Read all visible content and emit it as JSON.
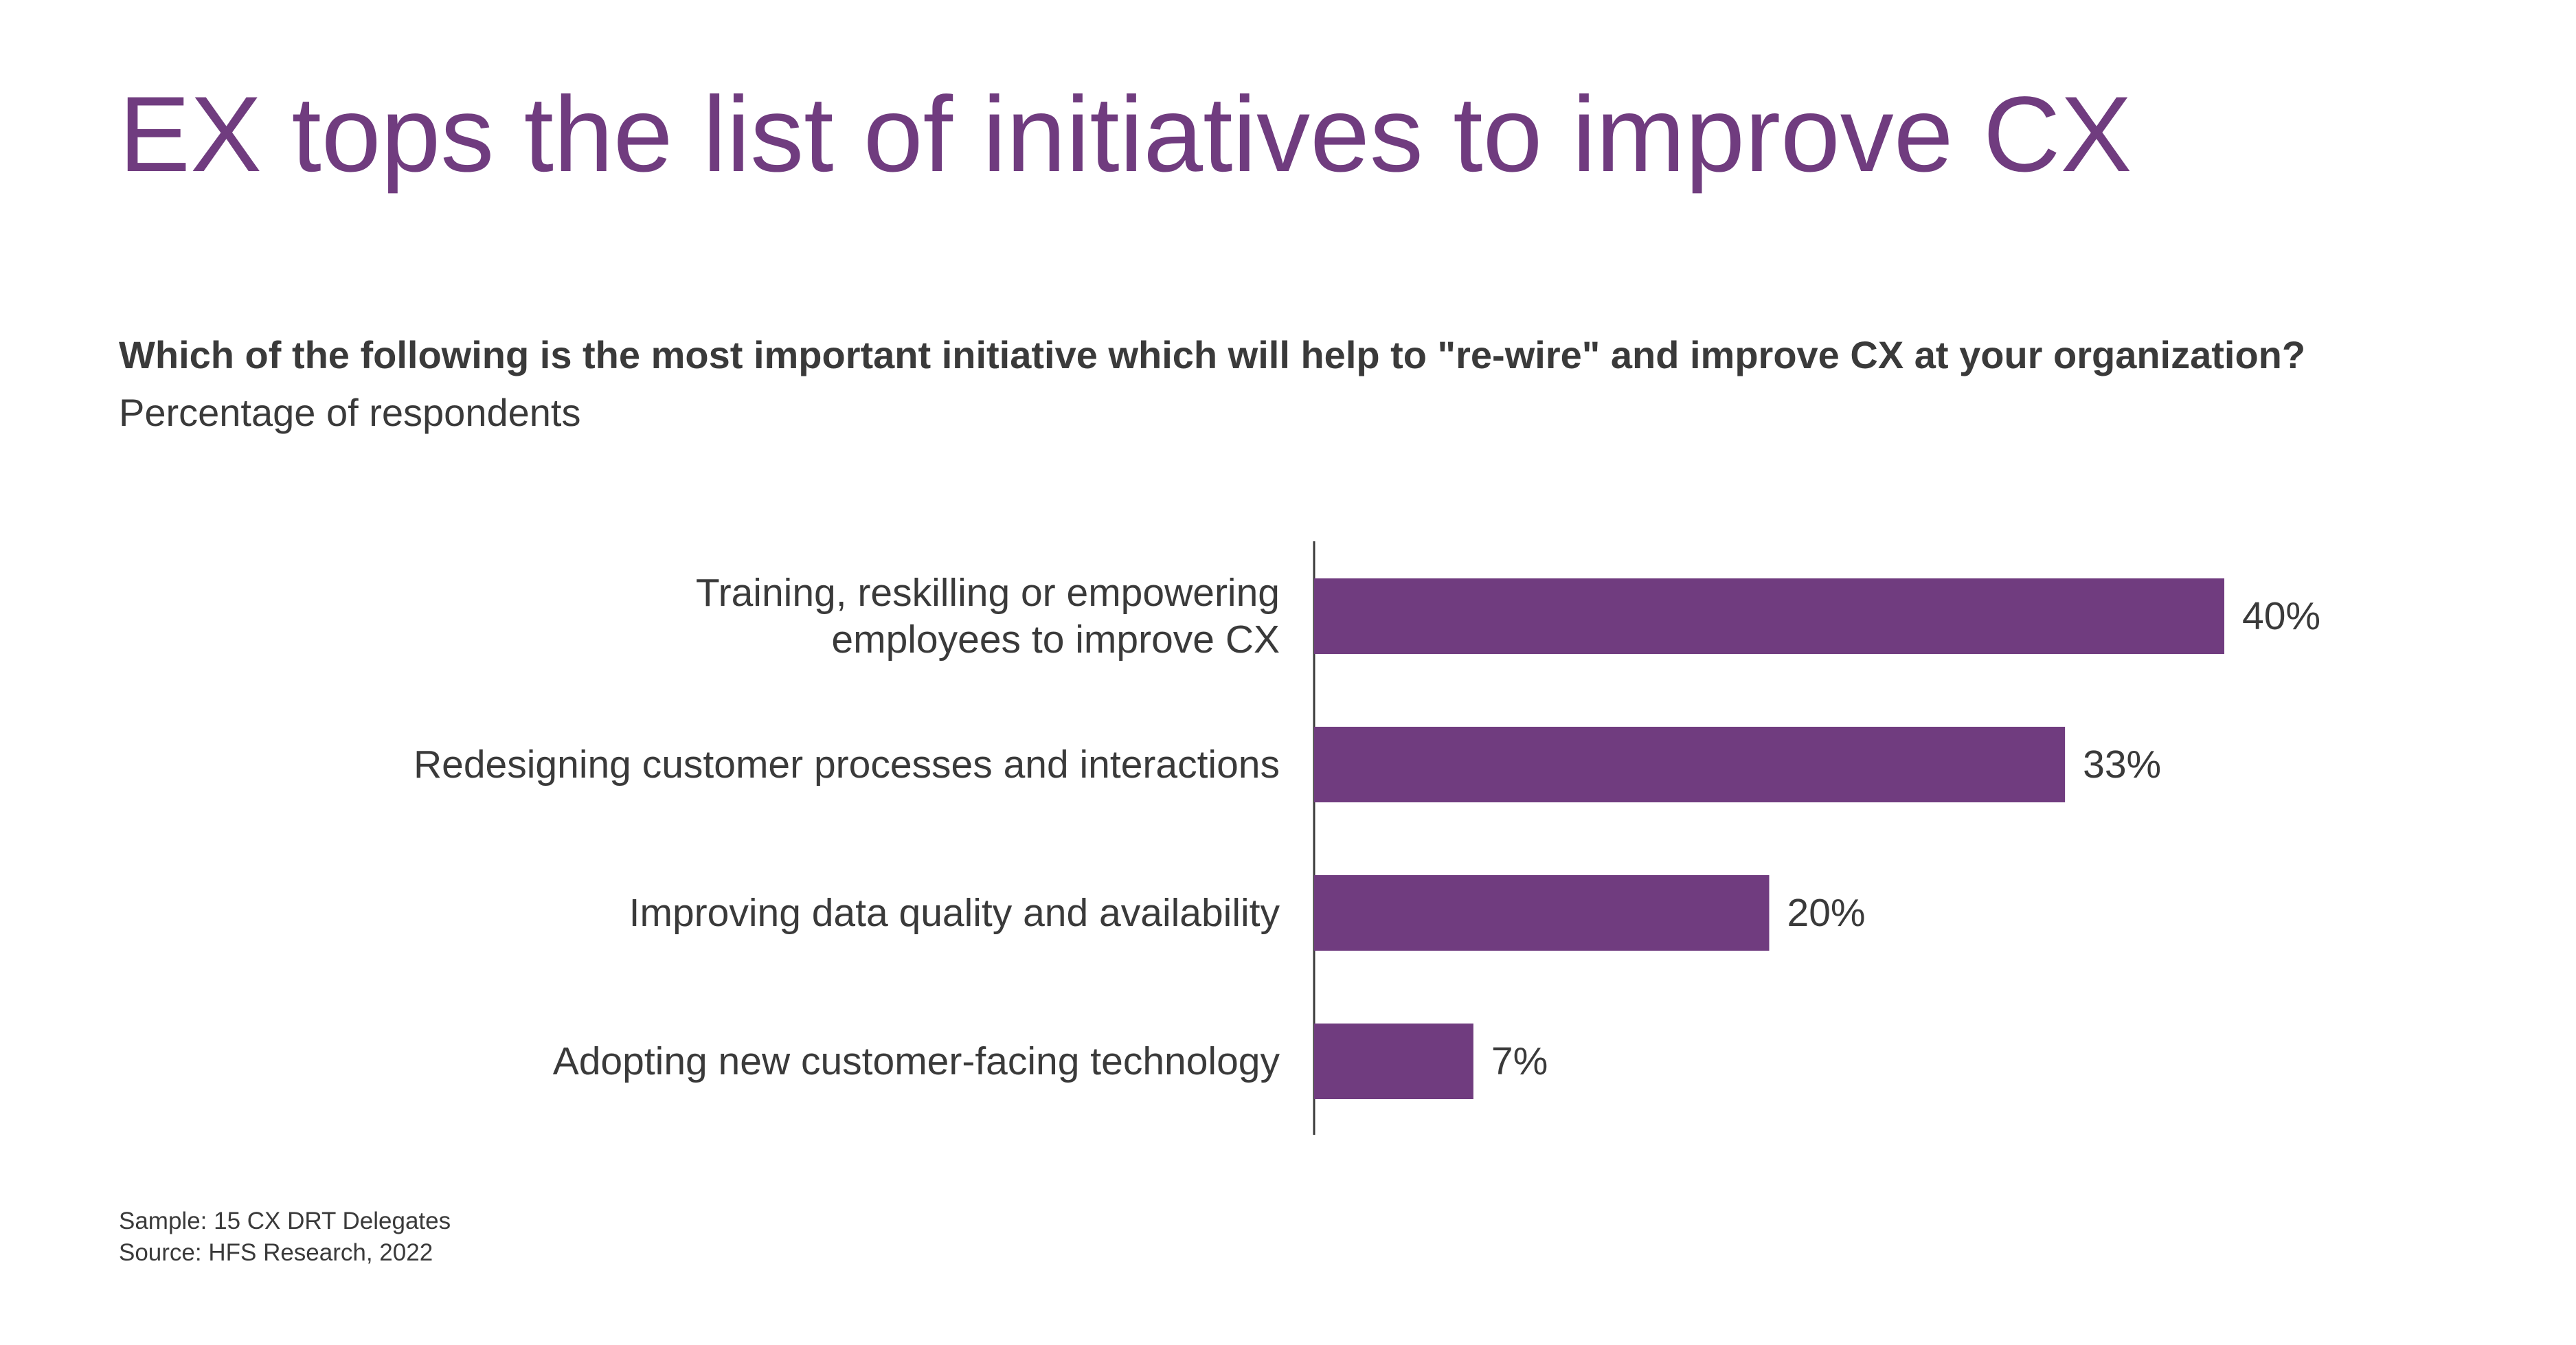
{
  "page": {
    "title": "EX tops the list of initiatives to improve CX",
    "question": "Which of the following is the most important initiative which will help to \"re-wire\" and improve CX at your organization?",
    "subtitle": "Percentage of respondents",
    "footnotes": {
      "sample": "Sample: 15 CX DRT Delegates",
      "source": "Source: HFS Research, 2022"
    }
  },
  "colors": {
    "accent": "#703c7f",
    "bar": "#703c7f",
    "text": "#3a3a3a",
    "axis": "#3a3a3a"
  },
  "chart_data": {
    "type": "bar",
    "orientation": "horizontal",
    "categories": [
      [
        "Training, reskilling or empowering",
        "employees to improve CX"
      ],
      [
        "Redesigning customer processes and interactions"
      ],
      [
        "Improving data quality and availability"
      ],
      [
        "Adopting new customer-facing technology"
      ]
    ],
    "values": [
      40,
      33,
      20,
      7
    ],
    "value_labels": [
      "40%",
      "33%",
      "20%",
      "7%"
    ],
    "title": "Which of the following is the most important initiative which will help to \"re-wire\" and improve CX at your organization?",
    "subtitle": "Percentage of respondents",
    "xlabel": "",
    "ylabel": "",
    "xlim": [
      0,
      40
    ],
    "grid": false,
    "legend": "none"
  }
}
